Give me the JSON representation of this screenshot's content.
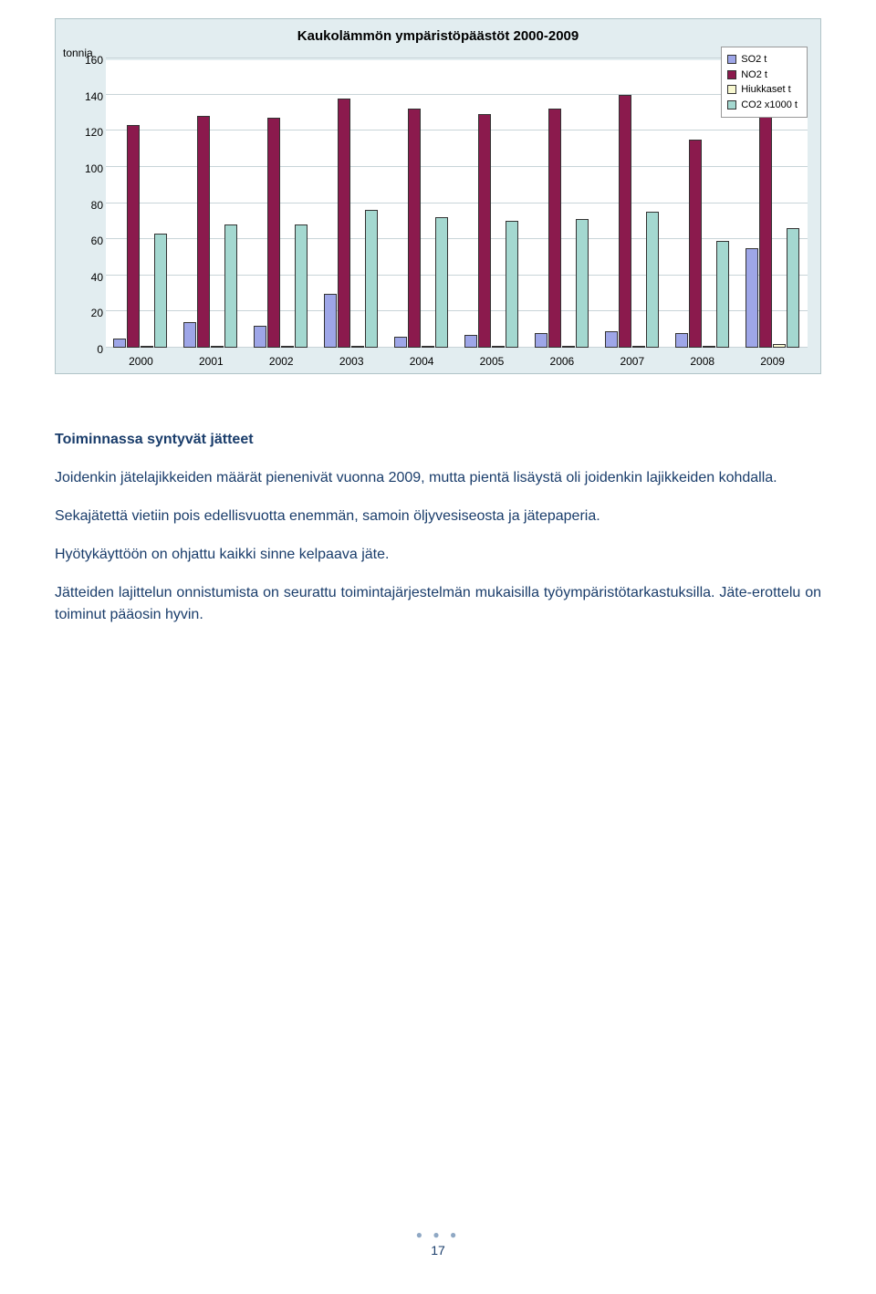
{
  "chart": {
    "title": "Kaukolämmön ympäristöpäästöt 2000-2009",
    "y_axis_label": "tonnia",
    "y_max": 160,
    "y_step": 20,
    "background_color": "#e2edf0",
    "plot_background": "#ffffff",
    "grid_color": "#c8d4d8",
    "categories": [
      "2000",
      "2001",
      "2002",
      "2003",
      "2004",
      "2005",
      "2006",
      "2007",
      "2008",
      "2009"
    ],
    "series": [
      {
        "name": "SO2  t",
        "color": "#9ea6e8",
        "values": [
          5,
          14,
          12,
          30,
          6,
          7,
          8,
          9,
          8,
          55
        ]
      },
      {
        "name": "NO2  t",
        "color": "#8b1a4d",
        "values": [
          123,
          128,
          127,
          138,
          132,
          129,
          132,
          140,
          115,
          128
        ]
      },
      {
        "name": "Hiukkaset  t",
        "color": "#f8f8d0",
        "values": [
          0.5,
          0.5,
          1,
          1,
          0.5,
          0.5,
          0.5,
          0.5,
          1,
          2
        ]
      },
      {
        "name": "CO2  x1000  t",
        "color": "#a4d8d0",
        "values": [
          63,
          68,
          68,
          76,
          72,
          70,
          71,
          75,
          59,
          66
        ]
      }
    ]
  },
  "body": {
    "heading": "Toiminnassa syntyvät jätteet",
    "p1": "Joidenkin jätelajikkeiden määrät pienenivät vuonna 2009, mutta pientä lisäystä oli joidenkin lajikkeiden kohdalla.",
    "p2": "Sekajätettä vietiin pois edellisvuotta enemmän, samoin öljyvesiseosta ja jätepaperia.",
    "p3": "Hyötykäyttöön on ohjattu kaikki sinne kelpaava jäte.",
    "p4": "Jätteiden lajittelun onnistumista on seurattu toimintajärjestelmän mukaisilla työympäristötarkastuksilla. Jäte-erottelu on toiminut pääosin hyvin."
  },
  "page_number": "17",
  "text_color": "#1a3d6b"
}
